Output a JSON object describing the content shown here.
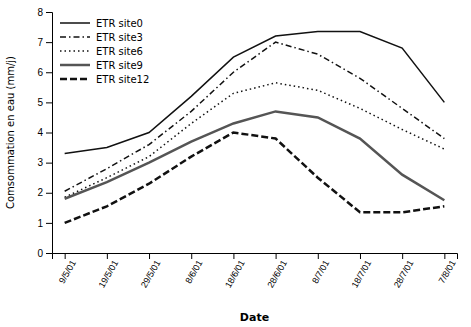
{
  "chart_data": {
    "type": "line",
    "xlabel": "Date",
    "ylabel": "Comsommation en eau (mm/j)",
    "categories": [
      "9/5/01",
      "19/5/01",
      "29/5/01",
      "8/6/01",
      "18/6/01",
      "28/6/01",
      "8/7/01",
      "18/7/01",
      "28/7/01",
      "7/8/01"
    ],
    "series": [
      {
        "name": "ETR site0",
        "color": "#111111",
        "line_style": "solid",
        "values": [
          3.3,
          3.5,
          4.0,
          5.2,
          6.5,
          7.2,
          7.35,
          7.35,
          6.8,
          5.0
        ]
      },
      {
        "name": "ETR site3",
        "color": "#111111",
        "line_style": "dashdot",
        "values": [
          2.05,
          2.8,
          3.6,
          4.7,
          6.0,
          7.0,
          6.6,
          5.8,
          4.8,
          3.8
        ]
      },
      {
        "name": "ETR site6",
        "color": "#111111",
        "line_style": "dotted",
        "values": [
          1.85,
          2.5,
          3.2,
          4.3,
          5.3,
          5.65,
          5.4,
          4.8,
          4.1,
          3.45
        ]
      },
      {
        "name": "ETR site9",
        "color": "#555555",
        "line_style": "solid",
        "values": [
          1.8,
          2.35,
          3.0,
          3.7,
          4.3,
          4.7,
          4.5,
          3.8,
          2.6,
          1.75
        ]
      },
      {
        "name": "ETR site12",
        "color": "#111111",
        "line_style": "dashed",
        "values": [
          1.0,
          1.55,
          2.3,
          3.2,
          4.0,
          3.8,
          2.5,
          1.35,
          1.35,
          1.55
        ]
      }
    ],
    "ylim": [
      0,
      8
    ],
    "yticks": [
      0,
      1,
      2,
      3,
      4,
      5,
      6,
      7,
      8
    ],
    "grid": false,
    "legend": "upper left"
  }
}
